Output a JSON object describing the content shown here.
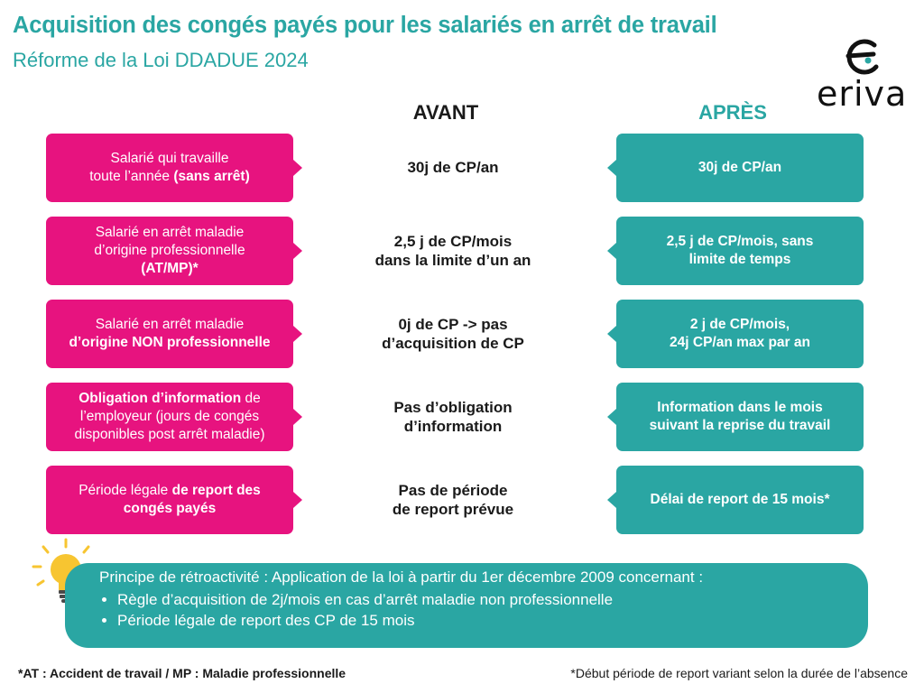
{
  "header": {
    "title": "Acquisition des congés payés pour les salariés en arrêt de travail",
    "subtitle": "Réforme de la Loi DDADUE 2024",
    "logo_text": "eriva"
  },
  "columns": {
    "avant": "AVANT",
    "apres": "APRÈS"
  },
  "rows": [
    {
      "left": [
        {
          "t": "Salarié qui travaille",
          "b": false,
          "br": true
        },
        {
          "t": "toute l’année ",
          "b": false
        },
        {
          "t": "(sans arrêt)",
          "b": true
        }
      ],
      "avant": [
        "30j de CP/an"
      ],
      "apres": [
        "30j de CP/an"
      ]
    },
    {
      "left": [
        {
          "t": "Salarié en arrêt maladie",
          "b": false,
          "br": true
        },
        {
          "t": "d’origine professionnelle",
          "b": false,
          "br": true
        },
        {
          "t": "(AT/MP)*",
          "b": true
        }
      ],
      "avant": [
        "2,5 j de CP/mois",
        "dans la limite d’un an"
      ],
      "apres": [
        "2,5 j de CP/mois, sans",
        "limite de temps"
      ]
    },
    {
      "left": [
        {
          "t": "Salarié en arrêt maladie",
          "b": false,
          "br": true
        },
        {
          "t": "d’origine NON professionnelle",
          "b": true
        }
      ],
      "avant": [
        "0j de CP -> pas",
        "d’acquisition de CP"
      ],
      "apres": [
        "2 j de CP/mois,",
        "24j CP/an max par an"
      ]
    },
    {
      "left": [
        {
          "t": "Obligation d’information",
          "b": true
        },
        {
          "t": " de",
          "b": false,
          "br": true
        },
        {
          "t": "l’employeur (jours de congés",
          "b": false,
          "br": true
        },
        {
          "t": "disponibles post arrêt maladie)",
          "b": false
        }
      ],
      "avant": [
        "Pas d’obligation",
        "d’information"
      ],
      "apres": [
        "Information dans le mois",
        "suivant la reprise du travail"
      ]
    },
    {
      "left": [
        {
          "t": "Période légale ",
          "b": false
        },
        {
          "t": "de report des",
          "b": true,
          "br": true
        },
        {
          "t": "congés payés",
          "b": true
        }
      ],
      "avant": [
        "Pas de période",
        "de report prévue"
      ],
      "apres": [
        "Délai de report de 15 mois*"
      ]
    }
  ],
  "note": {
    "intro": "Principe de rétroactivité : Application de la loi à partir du 1er décembre 2009 concernant :",
    "bullets": [
      "Règle d’acquisition de 2j/mois en cas d’arrêt maladie non professionnelle",
      "Période légale de report des CP de 15 mois"
    ]
  },
  "footer": {
    "left": "*AT : Accident de travail / MP : Maladie professionnelle",
    "right": "*Début période de report variant selon la durée de l’absence"
  },
  "colors": {
    "teal": "#2aa6a3",
    "pink": "#e7137f",
    "bulb": "#f7c531"
  }
}
